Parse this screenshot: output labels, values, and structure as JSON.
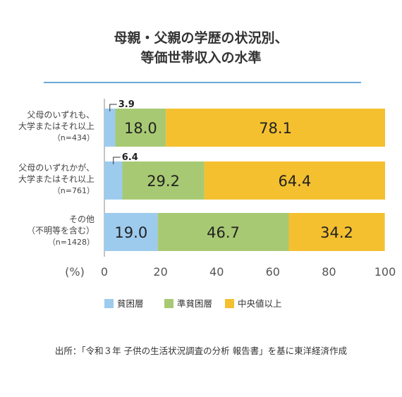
{
  "title_line1": "母親・父親の学歴の状況別、",
  "title_line2": "等価世帯収入の水準",
  "source": "出所：「令和３年 子供の生活状況調査の分析 報告書」を基に東洋経済作成",
  "chart_data": {
    "type": "bar",
    "orientation": "horizontal",
    "stacked": true,
    "xlim": [
      0,
      100
    ],
    "xunit": "(%)",
    "xticks": [
      "0",
      "20",
      "40",
      "60",
      "80",
      "100"
    ],
    "legend_position": "bottom",
    "categories": [
      [
        "父母のいずれも、",
        "大学またはそれ以上",
        "（n=434）"
      ],
      [
        "父母のいずれかが、",
        "大学またはそれ以上",
        "（n=761）"
      ],
      [
        "その他",
        "（不明等を含む）",
        "（n=1428）"
      ]
    ],
    "series": [
      {
        "name": "貧困層",
        "color": "#9dcbee",
        "values": [
          3.9,
          6.4,
          19.0
        ],
        "labels": [
          "3.9",
          "6.4",
          "19.0"
        ]
      },
      {
        "name": "準貧困層",
        "color": "#a8c973",
        "values": [
          18.0,
          29.2,
          46.7
        ],
        "labels": [
          "18.0",
          "29.2",
          "46.7"
        ]
      },
      {
        "name": "中央値以上",
        "color": "#f4c02f",
        "values": [
          78.1,
          64.4,
          34.2
        ],
        "labels": [
          "78.1",
          "64.4",
          "34.2"
        ]
      }
    ]
  }
}
